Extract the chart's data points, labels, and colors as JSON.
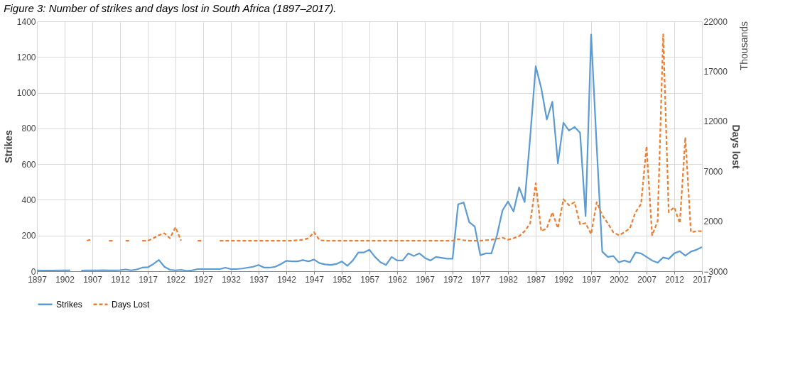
{
  "chart_data": {
    "type": "line",
    "title": "Figure 3: Number of strikes and days lost in South Africa (1897–2017).",
    "ylabel": "Strikes",
    "y2label": "Days lost",
    "annotations": [
      "Thousands"
    ],
    "x": [
      1897,
      1898,
      1899,
      1900,
      1901,
      1902,
      1903,
      1904,
      1905,
      1906,
      1907,
      1908,
      1909,
      1910,
      1911,
      1912,
      1913,
      1914,
      1915,
      1916,
      1917,
      1918,
      1919,
      1920,
      1921,
      1922,
      1923,
      1924,
      1925,
      1926,
      1927,
      1928,
      1929,
      1930,
      1931,
      1932,
      1933,
      1934,
      1935,
      1936,
      1937,
      1938,
      1939,
      1940,
      1941,
      1942,
      1943,
      1944,
      1945,
      1946,
      1947,
      1948,
      1949,
      1950,
      1951,
      1952,
      1953,
      1954,
      1955,
      1956,
      1957,
      1958,
      1959,
      1960,
      1961,
      1962,
      1963,
      1964,
      1965,
      1966,
      1967,
      1968,
      1969,
      1970,
      1971,
      1972,
      1973,
      1974,
      1975,
      1976,
      1977,
      1978,
      1979,
      1980,
      1981,
      1982,
      1983,
      1984,
      1985,
      1986,
      1987,
      1988,
      1989,
      1990,
      1991,
      1992,
      1993,
      1994,
      1995,
      1996,
      1997,
      1998,
      1999,
      2000,
      2001,
      2002,
      2003,
      2004,
      2005,
      2006,
      2007,
      2008,
      2009,
      2010,
      2011,
      2012,
      2013,
      2014,
      2015,
      2016,
      2017
    ],
    "series": [
      {
        "name": "Strikes",
        "color": "#5b9bd5",
        "line_style": "solid",
        "values": [
          5,
          4,
          4,
          4,
          5,
          5,
          5,
          null,
          4,
          5,
          5,
          5,
          6,
          5,
          5,
          6,
          10,
          5,
          10,
          20,
          22,
          40,
          63,
          25,
          8,
          5,
          8,
          2,
          5,
          12,
          12,
          12,
          12,
          12,
          20,
          12,
          12,
          15,
          20,
          25,
          35,
          20,
          20,
          25,
          40,
          58,
          55,
          55,
          62,
          55,
          65,
          45,
          38,
          35,
          40,
          55,
          30,
          60,
          105,
          105,
          120,
          80,
          50,
          35,
          80,
          60,
          60,
          100,
          85,
          100,
          75,
          60,
          80,
          75,
          70,
          70,
          375,
          385,
          275,
          250,
          90,
          100,
          100,
          200,
          340,
          390,
          335,
          470,
          387,
          750,
          1148,
          1025,
          850,
          949,
          604,
          832,
          788,
          808,
          776,
          309,
          1326,
          700,
          110,
          80,
          85,
          50,
          60,
          50,
          105,
          100,
          80,
          60,
          48,
          77,
          69,
          100,
          112,
          87,
          110,
          120,
          135
        ]
      },
      {
        "name": "Days Lost",
        "color": "#ed7d31",
        "line_style": "dashed",
        "axis": "y2",
        "values": [
          null,
          null,
          null,
          null,
          null,
          null,
          null,
          null,
          null,
          50,
          200,
          null,
          null,
          50,
          50,
          null,
          50,
          50,
          null,
          50,
          50,
          300,
          600,
          800,
          300,
          1400,
          50,
          null,
          null,
          50,
          50,
          null,
          null,
          50,
          50,
          50,
          50,
          50,
          50,
          50,
          50,
          50,
          50,
          50,
          50,
          50,
          50,
          100,
          150,
          300,
          900,
          100,
          50,
          50,
          50,
          50,
          50,
          50,
          50,
          50,
          50,
          50,
          50,
          50,
          50,
          50,
          50,
          50,
          50,
          50,
          50,
          50,
          50,
          50,
          50,
          50,
          200,
          100,
          50,
          50,
          50,
          100,
          150,
          250,
          350,
          150,
          300,
          500,
          1000,
          1800,
          5800,
          1000,
          1300,
          2900,
          1300,
          4200,
          3600,
          3900,
          1700,
          1800,
          700,
          3900,
          2600,
          1800,
          900,
          600,
          900,
          1300,
          2900,
          3700,
          9500,
          600,
          2000,
          20700,
          2900,
          3400,
          1800,
          10400,
          900,
          1000,
          1000
        ]
      }
    ],
    "xlim": [
      1897,
      2017
    ],
    "xticks": [
      1897,
      1902,
      1907,
      1912,
      1917,
      1922,
      1927,
      1932,
      1937,
      1942,
      1947,
      1952,
      1957,
      1962,
      1967,
      1972,
      1977,
      1982,
      1987,
      1992,
      1997,
      2002,
      2007,
      2012,
      2017
    ],
    "ylim": [
      0,
      1400
    ],
    "yticks": [
      0,
      200,
      400,
      600,
      800,
      1000,
      1200,
      1400
    ],
    "y2lim": [
      -3000,
      22000
    ],
    "y2ticks": [
      -3000,
      2000,
      7000,
      12000,
      17000,
      22000
    ],
    "grid": true,
    "legend": "bottom"
  }
}
